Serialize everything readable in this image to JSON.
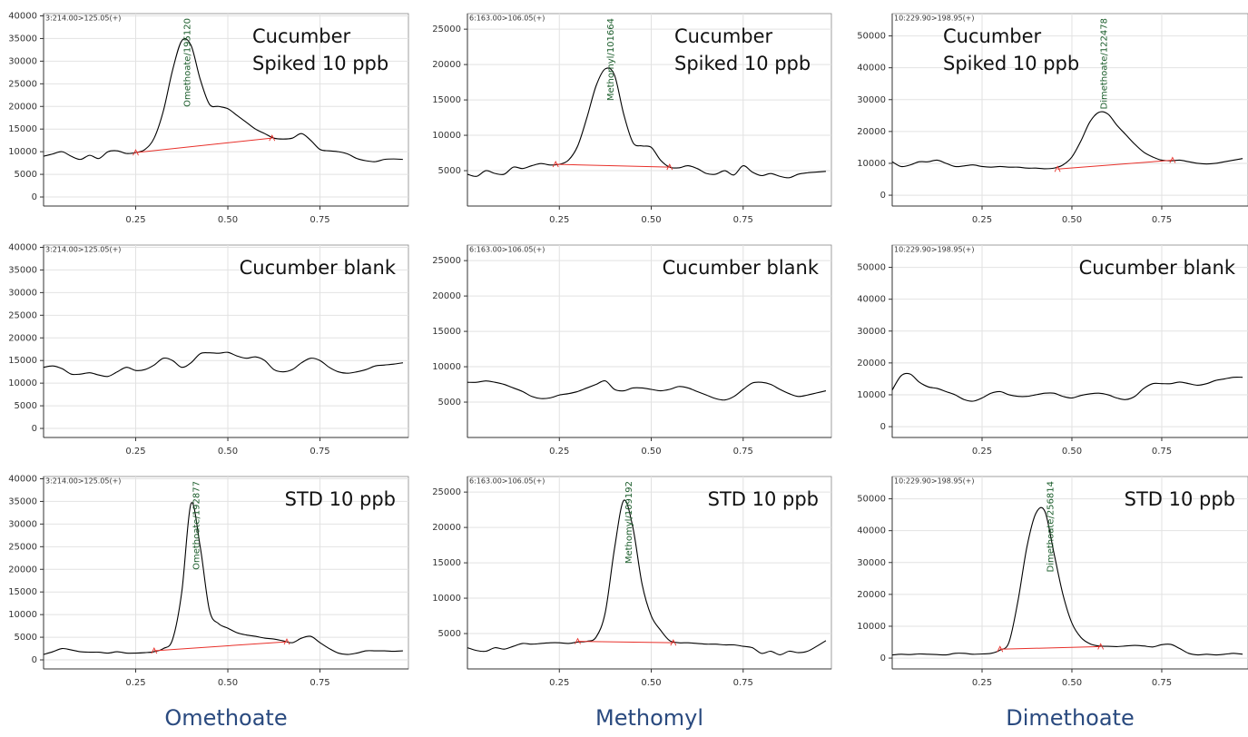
{
  "column_labels": [
    "Omethoate",
    "Methomyl",
    "Dimethoate"
  ],
  "chart_data": [
    {
      "type": "line",
      "title": "3:214.00>125.05(+)",
      "label": [
        "Cucumber",
        "Spiked 10 ppb"
      ],
      "peak_label": "Omethoate/195120",
      "color": "#000000",
      "x": [
        0,
        0.025,
        0.05,
        0.075,
        0.1,
        0.125,
        0.15,
        0.175,
        0.2,
        0.225,
        0.25,
        0.275,
        0.3,
        0.325,
        0.35,
        0.375,
        0.4,
        0.425,
        0.45,
        0.475,
        0.5,
        0.525,
        0.55,
        0.575,
        0.6,
        0.625,
        0.65,
        0.675,
        0.7,
        0.725,
        0.75,
        0.775,
        0.8,
        0.825,
        0.85,
        0.875,
        0.9,
        0.925,
        0.95,
        0.975
      ],
      "values": [
        9000,
        9500,
        10000,
        9000,
        8300,
        9200,
        8500,
        10000,
        10200,
        9600,
        9800,
        10500,
        13000,
        19000,
        28000,
        34500,
        33500,
        26000,
        20500,
        20000,
        19500,
        18000,
        16500,
        15000,
        14000,
        13000,
        12800,
        13000,
        14000,
        12500,
        10500,
        10200,
        10000,
        9500,
        8500,
        8000,
        7800,
        8300,
        8400,
        8300
      ],
      "baseline": {
        "x": [
          0.25,
          0.62
        ],
        "values": [
          9800,
          13000
        ],
        "color": "#e8302a"
      },
      "xlim": [
        0,
        0.99
      ],
      "xticks": [
        0.25,
        {
          "value": 0.5,
          "label": "0.50"
        },
        0.75
      ],
      "ylim": [
        -2000,
        40500
      ],
      "yticks": [
        0,
        5000,
        10000,
        15000,
        20000,
        25000,
        30000,
        35000,
        40000
      ],
      "grid": true
    },
    {
      "type": "line",
      "title": "6:163.00>106.05(+)",
      "label": [
        "Cucumber",
        "Spiked 10 ppb"
      ],
      "peak_label": "Methomyl/101664",
      "color": "#000000",
      "x": [
        0,
        0.025,
        0.05,
        0.075,
        0.1,
        0.125,
        0.15,
        0.175,
        0.2,
        0.225,
        0.25,
        0.275,
        0.3,
        0.325,
        0.35,
        0.375,
        0.4,
        0.425,
        0.45,
        0.475,
        0.5,
        0.525,
        0.55,
        0.575,
        0.6,
        0.625,
        0.65,
        0.675,
        0.7,
        0.725,
        0.75,
        0.775,
        0.8,
        0.825,
        0.85,
        0.875,
        0.9,
        0.925,
        0.95,
        0.975
      ],
      "values": [
        4500,
        4200,
        5000,
        4600,
        4500,
        5500,
        5300,
        5700,
        6000,
        5800,
        5900,
        6500,
        8500,
        12500,
        17000,
        19400,
        18500,
        13000,
        9000,
        8500,
        8300,
        6500,
        5500,
        5400,
        5700,
        5300,
        4600,
        4500,
        5000,
        4400,
        5700,
        4800,
        4300,
        4600,
        4200,
        4000,
        4500,
        4700,
        4800,
        4900
      ],
      "baseline": {
        "x": [
          0.24,
          0.55
        ],
        "values": [
          5900,
          5500
        ],
        "color": "#e8302a"
      },
      "xlim": [
        0,
        0.99
      ],
      "xticks": [
        0.25,
        {
          "value": 0.5,
          "label": "0.50"
        },
        0.75
      ],
      "ylim": [
        0,
        27200
      ],
      "yticks": [
        5000,
        10000,
        15000,
        20000,
        25000
      ],
      "grid": true
    },
    {
      "type": "line",
      "title": "10:229.90>198.95(+)",
      "label": [
        "Cucumber",
        "Spiked 10 ppb"
      ],
      "peak_label": "Dimethoate/122478",
      "color": "#000000",
      "x": [
        0,
        0.025,
        0.05,
        0.075,
        0.1,
        0.125,
        0.15,
        0.175,
        0.2,
        0.225,
        0.25,
        0.275,
        0.3,
        0.325,
        0.35,
        0.375,
        0.4,
        0.425,
        0.45,
        0.475,
        0.5,
        0.525,
        0.55,
        0.575,
        0.6,
        0.625,
        0.65,
        0.675,
        0.7,
        0.725,
        0.75,
        0.775,
        0.8,
        0.825,
        0.85,
        0.875,
        0.9,
        0.925,
        0.95,
        0.975
      ],
      "values": [
        10500,
        9000,
        9500,
        10500,
        10500,
        11000,
        10000,
        9000,
        9200,
        9500,
        9000,
        8800,
        9000,
        8800,
        8800,
        8500,
        8500,
        8300,
        8500,
        9500,
        12000,
        17000,
        23000,
        26000,
        25500,
        22000,
        19000,
        16000,
        13500,
        12000,
        11000,
        10800,
        11000,
        10500,
        10000,
        9800,
        10000,
        10500,
        11000,
        11500
      ],
      "baseline": {
        "x": [
          0.46,
          0.78
        ],
        "values": [
          8200,
          11000
        ],
        "color": "#e8302a"
      },
      "xlim": [
        0,
        0.99
      ],
      "xticks": [
        0.25,
        {
          "value": 0.5,
          "label": "0.50"
        },
        0.75
      ],
      "ylim": [
        -3400,
        57000
      ],
      "yticks": [
        0,
        10000,
        20000,
        30000,
        40000,
        50000
      ],
      "grid": true
    },
    {
      "type": "line",
      "title": "3:214.00>125.05(+)",
      "label": [
        "Cucumber blank"
      ],
      "color": "#000000",
      "x": [
        0,
        0.025,
        0.05,
        0.075,
        0.1,
        0.125,
        0.15,
        0.175,
        0.2,
        0.225,
        0.25,
        0.275,
        0.3,
        0.325,
        0.35,
        0.375,
        0.4,
        0.425,
        0.45,
        0.475,
        0.5,
        0.525,
        0.55,
        0.575,
        0.6,
        0.625,
        0.65,
        0.675,
        0.7,
        0.725,
        0.75,
        0.775,
        0.8,
        0.825,
        0.85,
        0.875,
        0.9,
        0.925,
        0.95,
        0.975
      ],
      "values": [
        13500,
        13800,
        13200,
        12000,
        12000,
        12300,
        11800,
        11500,
        12500,
        13500,
        12800,
        13000,
        14000,
        15500,
        15000,
        13500,
        14500,
        16500,
        16700,
        16600,
        16800,
        16000,
        15500,
        15800,
        15000,
        13000,
        12500,
        13000,
        14500,
        15500,
        15000,
        13500,
        12500,
        12200,
        12500,
        13000,
        13800,
        14000,
        14200,
        14500
      ],
      "xlim": [
        0,
        0.99
      ],
      "xticks": [
        0.25,
        {
          "value": 0.5,
          "label": "0.50"
        },
        0.75
      ],
      "ylim": [
        -2000,
        40500
      ],
      "yticks": [
        0,
        5000,
        10000,
        15000,
        20000,
        25000,
        30000,
        35000,
        40000
      ],
      "grid": true
    },
    {
      "type": "line",
      "title": "6:163.00>106.05(+)",
      "label": [
        "Cucumber blank"
      ],
      "color": "#000000",
      "x": [
        0,
        0.025,
        0.05,
        0.075,
        0.1,
        0.125,
        0.15,
        0.175,
        0.2,
        0.225,
        0.25,
        0.275,
        0.3,
        0.325,
        0.35,
        0.375,
        0.4,
        0.425,
        0.45,
        0.475,
        0.5,
        0.525,
        0.55,
        0.575,
        0.6,
        0.625,
        0.65,
        0.675,
        0.7,
        0.725,
        0.75,
        0.775,
        0.8,
        0.825,
        0.85,
        0.875,
        0.9,
        0.925,
        0.95,
        0.975
      ],
      "values": [
        7800,
        7800,
        8000,
        7800,
        7500,
        7000,
        6500,
        5800,
        5500,
        5600,
        6000,
        6200,
        6500,
        7000,
        7500,
        8000,
        6800,
        6600,
        7000,
        7000,
        6800,
        6600,
        6800,
        7200,
        7000,
        6500,
        6000,
        5500,
        5300,
        5800,
        6800,
        7700,
        7800,
        7500,
        6800,
        6200,
        5800,
        6000,
        6300,
        6600
      ],
      "xlim": [
        0,
        0.99
      ],
      "xticks": [
        0.25,
        {
          "value": 0.5,
          "label": "0.50"
        },
        0.75
      ],
      "ylim": [
        0,
        27200
      ],
      "yticks": [
        5000,
        10000,
        15000,
        20000,
        25000
      ],
      "grid": true
    },
    {
      "type": "line",
      "title": "10:229.90>198.95(+)",
      "label": [
        "Cucumber blank"
      ],
      "color": "#000000",
      "x": [
        0,
        0.025,
        0.05,
        0.075,
        0.1,
        0.125,
        0.15,
        0.175,
        0.2,
        0.225,
        0.25,
        0.275,
        0.3,
        0.325,
        0.35,
        0.375,
        0.4,
        0.425,
        0.45,
        0.475,
        0.5,
        0.525,
        0.55,
        0.575,
        0.6,
        0.625,
        0.65,
        0.675,
        0.7,
        0.725,
        0.75,
        0.775,
        0.8,
        0.825,
        0.85,
        0.875,
        0.9,
        0.925,
        0.95,
        0.975
      ],
      "values": [
        11500,
        16000,
        16500,
        14000,
        12500,
        12000,
        11000,
        10000,
        8500,
        8000,
        9000,
        10500,
        11000,
        10000,
        9500,
        9500,
        10000,
        10500,
        10500,
        9500,
        9000,
        9800,
        10300,
        10500,
        10000,
        9000,
        8500,
        9500,
        12000,
        13500,
        13500,
        13500,
        14000,
        13500,
        13000,
        13500,
        14500,
        15000,
        15500,
        15500
      ],
      "xlim": [
        0,
        0.99
      ],
      "xticks": [
        0.25,
        {
          "value": 0.5,
          "label": "0.50"
        },
        0.75
      ],
      "ylim": [
        -3400,
        57000
      ],
      "yticks": [
        0,
        10000,
        20000,
        30000,
        40000,
        50000
      ],
      "grid": true
    },
    {
      "type": "line",
      "title": "3:214.00>125.05(+)",
      "label": [
        "STD 10 ppb"
      ],
      "peak_label": "Omethoate/192877",
      "color": "#000000",
      "x": [
        0,
        0.025,
        0.05,
        0.075,
        0.1,
        0.125,
        0.15,
        0.175,
        0.2,
        0.225,
        0.25,
        0.275,
        0.3,
        0.325,
        0.35,
        0.375,
        0.4,
        0.425,
        0.45,
        0.475,
        0.5,
        0.525,
        0.55,
        0.575,
        0.6,
        0.625,
        0.65,
        0.675,
        0.7,
        0.725,
        0.75,
        0.775,
        0.8,
        0.825,
        0.85,
        0.875,
        0.9,
        0.925,
        0.95,
        0.975
      ],
      "values": [
        1200,
        1800,
        2500,
        2200,
        1800,
        1700,
        1700,
        1500,
        1800,
        1500,
        1500,
        1600,
        1800,
        2500,
        4500,
        15000,
        34500,
        25000,
        11000,
        8000,
        7000,
        6000,
        5500,
        5200,
        4800,
        4600,
        4200,
        3800,
        4800,
        5200,
        3800,
        2500,
        1500,
        1200,
        1500,
        2000,
        2000,
        2000,
        1900,
        2000
      ],
      "baseline": {
        "x": [
          0.3,
          0.66
        ],
        "values": [
          2000,
          4000
        ],
        "color": "#e8302a"
      },
      "xlim": [
        0,
        0.99
      ],
      "xticks": [
        0.25,
        {
          "value": 0.5,
          "label": "0.50"
        },
        0.75
      ],
      "ylim": [
        -2000,
        40500
      ],
      "yticks": [
        0,
        5000,
        10000,
        15000,
        20000,
        25000,
        30000,
        35000,
        40000
      ],
      "grid": true
    },
    {
      "type": "line",
      "title": "6:163.00>106.05(+)",
      "label": [
        "STD 10 ppb"
      ],
      "peak_label": "Methomyl/109192",
      "color": "#000000",
      "x": [
        0,
        0.025,
        0.05,
        0.075,
        0.1,
        0.125,
        0.15,
        0.175,
        0.2,
        0.225,
        0.25,
        0.275,
        0.3,
        0.325,
        0.35,
        0.375,
        0.4,
        0.425,
        0.45,
        0.475,
        0.5,
        0.525,
        0.55,
        0.575,
        0.6,
        0.625,
        0.65,
        0.675,
        0.7,
        0.725,
        0.75,
        0.775,
        0.8,
        0.825,
        0.85,
        0.875,
        0.9,
        0.925,
        0.95,
        0.975
      ],
      "values": [
        3000,
        2600,
        2500,
        3000,
        2800,
        3200,
        3600,
        3500,
        3600,
        3700,
        3700,
        3600,
        3800,
        3900,
        4500,
        8000,
        17000,
        23800,
        20000,
        12000,
        7500,
        5500,
        4000,
        3700,
        3700,
        3600,
        3500,
        3500,
        3400,
        3400,
        3200,
        3000,
        2200,
        2500,
        2000,
        2500,
        2300,
        2500,
        3200,
        4000
      ],
      "baseline": {
        "x": [
          0.3,
          0.56
        ],
        "values": [
          3900,
          3700
        ],
        "color": "#e8302a"
      },
      "xlim": [
        0,
        0.99
      ],
      "xticks": [
        0.25,
        {
          "value": 0.5,
          "label": "0.50"
        },
        0.75
      ],
      "ylim": [
        0,
        27200
      ],
      "yticks": [
        5000,
        10000,
        15000,
        20000,
        25000
      ],
      "grid": true
    },
    {
      "type": "line",
      "title": "10:229.90>198.95(+)",
      "label": [
        "STD 10 ppb"
      ],
      "peak_label": "Dimethoate/256814",
      "color": "#000000",
      "x": [
        0,
        0.025,
        0.05,
        0.075,
        0.1,
        0.125,
        0.15,
        0.175,
        0.2,
        0.225,
        0.25,
        0.275,
        0.3,
        0.325,
        0.35,
        0.375,
        0.4,
        0.425,
        0.45,
        0.475,
        0.5,
        0.525,
        0.55,
        0.575,
        0.6,
        0.625,
        0.65,
        0.675,
        0.7,
        0.725,
        0.75,
        0.775,
        0.8,
        0.825,
        0.85,
        0.875,
        0.9,
        0.925,
        0.95,
        0.975
      ],
      "values": [
        1000,
        1200,
        1100,
        1300,
        1200,
        1100,
        1000,
        1500,
        1500,
        1200,
        1300,
        1500,
        2500,
        5000,
        18000,
        35000,
        45500,
        46000,
        33000,
        20000,
        11000,
        6500,
        4500,
        3800,
        3700,
        3600,
        3800,
        4000,
        3800,
        3500,
        4200,
        4300,
        3000,
        1500,
        1000,
        1200,
        1000,
        1200,
        1500,
        1200
      ],
      "baseline": {
        "x": [
          0.3,
          0.58
        ],
        "values": [
          2800,
          3600
        ],
        "color": "#e8302a"
      },
      "xlim": [
        0,
        0.99
      ],
      "xticks": [
        0.25,
        {
          "value": 0.5,
          "label": "0.50"
        },
        0.75
      ],
      "ylim": [
        -3400,
        57000
      ],
      "yticks": [
        0,
        10000,
        20000,
        30000,
        40000,
        50000
      ],
      "grid": true
    }
  ]
}
